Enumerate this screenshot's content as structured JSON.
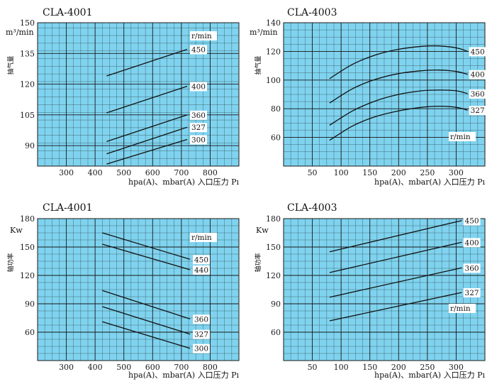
{
  "chart_data": [
    {
      "id": "c1",
      "type": "line",
      "title": "CLA-4001",
      "unit": "m³/min",
      "ylabel": "抽气量",
      "xlabel": "hpa(A)、mbar(A) 入口压力 Pı",
      "xlim": [
        200,
        900
      ],
      "ylim": [
        80,
        150
      ],
      "xticks": [
        300,
        400,
        500,
        600,
        700,
        800
      ],
      "xtick_labels": [
        "300",
        "400",
        "500",
        "600",
        "700",
        "800"
      ],
      "yticks": [
        90,
        105,
        120,
        135,
        150
      ],
      "ytick_labels": [
        "90",
        "105",
        "120",
        "135",
        "150"
      ],
      "legend_title": "r/min",
      "series": [
        {
          "name": "450",
          "x": [
            440,
            720
          ],
          "y": [
            124,
            137
          ]
        },
        {
          "name": "400",
          "x": [
            440,
            720
          ],
          "y": [
            106,
            119
          ]
        },
        {
          "name": "360",
          "x": [
            440,
            720
          ],
          "y": [
            92,
            105
          ]
        },
        {
          "name": "327",
          "x": [
            440,
            720
          ],
          "y": [
            86,
            99
          ]
        },
        {
          "name": "300",
          "x": [
            440,
            720
          ],
          "y": [
            81,
            93
          ]
        }
      ]
    },
    {
      "id": "c2",
      "type": "line",
      "title": "CLA-4003",
      "unit": "m³/min",
      "ylabel": "抽气量",
      "xlabel": "hpa(A)、mbar(A) 入口压力 Pı",
      "xlim": [
        0,
        350
      ],
      "ylim": [
        40,
        140
      ],
      "xticks": [
        50,
        100,
        150,
        200,
        250,
        300
      ],
      "xtick_labels": [
        "50",
        "100",
        "150",
        "200",
        "250",
        "300"
      ],
      "yticks": [
        60,
        80,
        100,
        120,
        140
      ],
      "ytick_labels": [
        "60",
        "80",
        "100",
        "120",
        "140"
      ],
      "legend_title": "r/min",
      "series": [
        {
          "name": "450",
          "x": [
            80,
            120,
            160,
            200,
            240,
            270,
            300,
            320
          ],
          "y": [
            101,
            111,
            117.5,
            121.5,
            123.5,
            123.8,
            122.5,
            120
          ]
        },
        {
          "name": "400",
          "x": [
            80,
            120,
            160,
            200,
            240,
            270,
            300,
            320
          ],
          "y": [
            84,
            94,
            100.5,
            104.5,
            106.5,
            107,
            106,
            104
          ]
        },
        {
          "name": "360",
          "x": [
            80,
            120,
            160,
            200,
            240,
            270,
            300,
            320
          ],
          "y": [
            68.5,
            78.5,
            85.5,
            90,
            92.5,
            93,
            92.5,
            90.5
          ]
        },
        {
          "name": "327",
          "x": [
            80,
            120,
            160,
            200,
            240,
            270,
            300,
            320
          ],
          "y": [
            58,
            68,
            74.5,
            78.5,
            81,
            81.8,
            81,
            79
          ]
        }
      ]
    },
    {
      "id": "c3",
      "type": "line",
      "title": "CLA-4001",
      "unit": "Kw",
      "ylabel": "轴功率",
      "xlabel": "hpa(A)、mbar(A) 入口压力 Pı",
      "xlim": [
        200,
        900
      ],
      "ylim": [
        30,
        180
      ],
      "xticks": [
        300,
        400,
        500,
        600,
        700,
        800
      ],
      "xtick_labels": [
        "300",
        "400",
        "500",
        "600",
        "700",
        "800"
      ],
      "yticks": [
        60,
        90,
        120,
        150,
        180
      ],
      "ytick_labels": [
        "60",
        "90",
        "120",
        "150",
        "180"
      ],
      "legend_title": "r/min",
      "series": [
        {
          "name": "450",
          "x": [
            425,
            730
          ],
          "y": [
            165,
            137
          ]
        },
        {
          "name": "440",
          "x": [
            425,
            730
          ],
          "y": [
            153,
            126
          ]
        },
        {
          "name": "360",
          "x": [
            425,
            730
          ],
          "y": [
            104,
            74
          ]
        },
        {
          "name": "327",
          "x": [
            425,
            730
          ],
          "y": [
            87,
            58
          ]
        },
        {
          "name": "300",
          "x": [
            425,
            730
          ],
          "y": [
            71,
            43
          ]
        }
      ]
    },
    {
      "id": "c4",
      "type": "line",
      "title": "CLA-4003",
      "unit": "Kw",
      "ylabel": "轴功率",
      "xlabel": "hpa(A)、mbar(A) 入口压力 Pı",
      "xlim": [
        0,
        350
      ],
      "ylim": [
        30,
        180
      ],
      "xticks": [
        50,
        100,
        150,
        200,
        250,
        300
      ],
      "xtick_labels": [
        "50",
        "100",
        "150",
        "200",
        "250",
        "300"
      ],
      "yticks": [
        60,
        90,
        120,
        150,
        180
      ],
      "ytick_labels": [
        "60",
        "90",
        "120",
        "150",
        "180"
      ],
      "legend_title": "r/min",
      "series": [
        {
          "name": "450",
          "x": [
            80,
            310
          ],
          "y": [
            145,
            178
          ]
        },
        {
          "name": "400",
          "x": [
            80,
            310
          ],
          "y": [
            123,
            155
          ]
        },
        {
          "name": "360",
          "x": [
            80,
            310
          ],
          "y": [
            97,
            128
          ]
        },
        {
          "name": "327",
          "x": [
            80,
            310
          ],
          "y": [
            72,
            102
          ]
        }
      ]
    }
  ]
}
